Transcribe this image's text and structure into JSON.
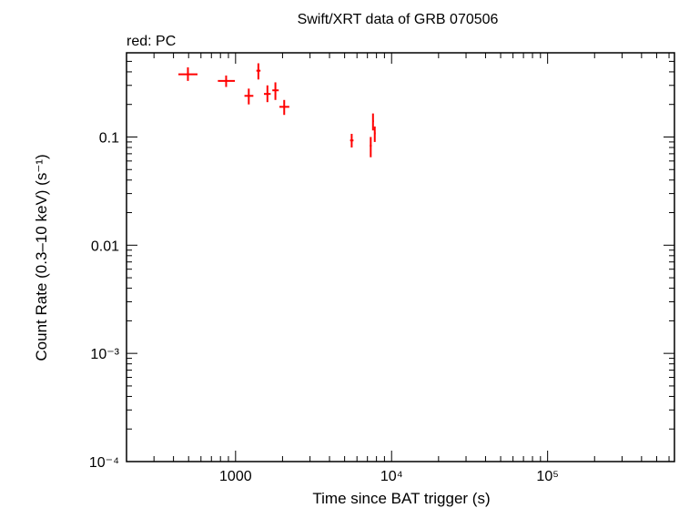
{
  "chart_data": {
    "type": "scatter",
    "title": "Swift/XRT data of GRB 070506",
    "subtitle": "red: PC",
    "xlabel": "Time since BAT trigger (s)",
    "ylabel": "Count Rate (0.3–10 keV) (s⁻¹)",
    "xscale": "log",
    "yscale": "log",
    "xlim": [
      200,
      650000
    ],
    "ylim": [
      0.0001,
      0.6
    ],
    "x_ticks": [
      {
        "value": 1000,
        "label": "1000"
      },
      {
        "value": 10000,
        "label": "10⁴"
      },
      {
        "value": 100000,
        "label": "10⁵"
      }
    ],
    "y_ticks": [
      {
        "value": 0.1,
        "label": "0.1"
      },
      {
        "value": 0.01,
        "label": "0.01"
      },
      {
        "value": 0.001,
        "label": "10⁻³"
      },
      {
        "value": 0.0001,
        "label": "10⁻⁴"
      }
    ],
    "grid": false,
    "series_color": "#ff0000",
    "series": [
      {
        "points": [
          {
            "x": 495,
            "xlo": 430,
            "xhi": 570,
            "y": 0.38,
            "ylo": 0.33,
            "yhi": 0.44
          },
          {
            "x": 870,
            "xlo": 770,
            "xhi": 990,
            "y": 0.33,
            "ylo": 0.29,
            "yhi": 0.37
          },
          {
            "x": 1215,
            "xlo": 1140,
            "xhi": 1300,
            "y": 0.24,
            "ylo": 0.2,
            "yhi": 0.28
          },
          {
            "x": 1400,
            "xlo": 1360,
            "xhi": 1445,
            "y": 0.41,
            "ylo": 0.34,
            "yhi": 0.48
          },
          {
            "x": 1600,
            "xlo": 1520,
            "xhi": 1680,
            "y": 0.25,
            "ylo": 0.21,
            "yhi": 0.3
          },
          {
            "x": 1800,
            "xlo": 1720,
            "xhi": 1890,
            "y": 0.27,
            "ylo": 0.22,
            "yhi": 0.32
          },
          {
            "x": 2050,
            "xlo": 1910,
            "xhi": 2210,
            "y": 0.19,
            "ylo": 0.16,
            "yhi": 0.22
          },
          {
            "x": 5550,
            "xlo": 5420,
            "xhi": 5700,
            "y": 0.093,
            "ylo": 0.08,
            "yhi": 0.107
          },
          {
            "x": 7350,
            "xlo": 7250,
            "xhi": 7450,
            "y": 0.083,
            "ylo": 0.065,
            "yhi": 0.1
          },
          {
            "x": 7600,
            "xlo": 7520,
            "xhi": 7700,
            "y": 0.14,
            "ylo": 0.115,
            "yhi": 0.165
          },
          {
            "x": 7800,
            "xlo": 7720,
            "xhi": 7900,
            "y": 0.108,
            "ylo": 0.09,
            "yhi": 0.125
          }
        ]
      }
    ]
  }
}
